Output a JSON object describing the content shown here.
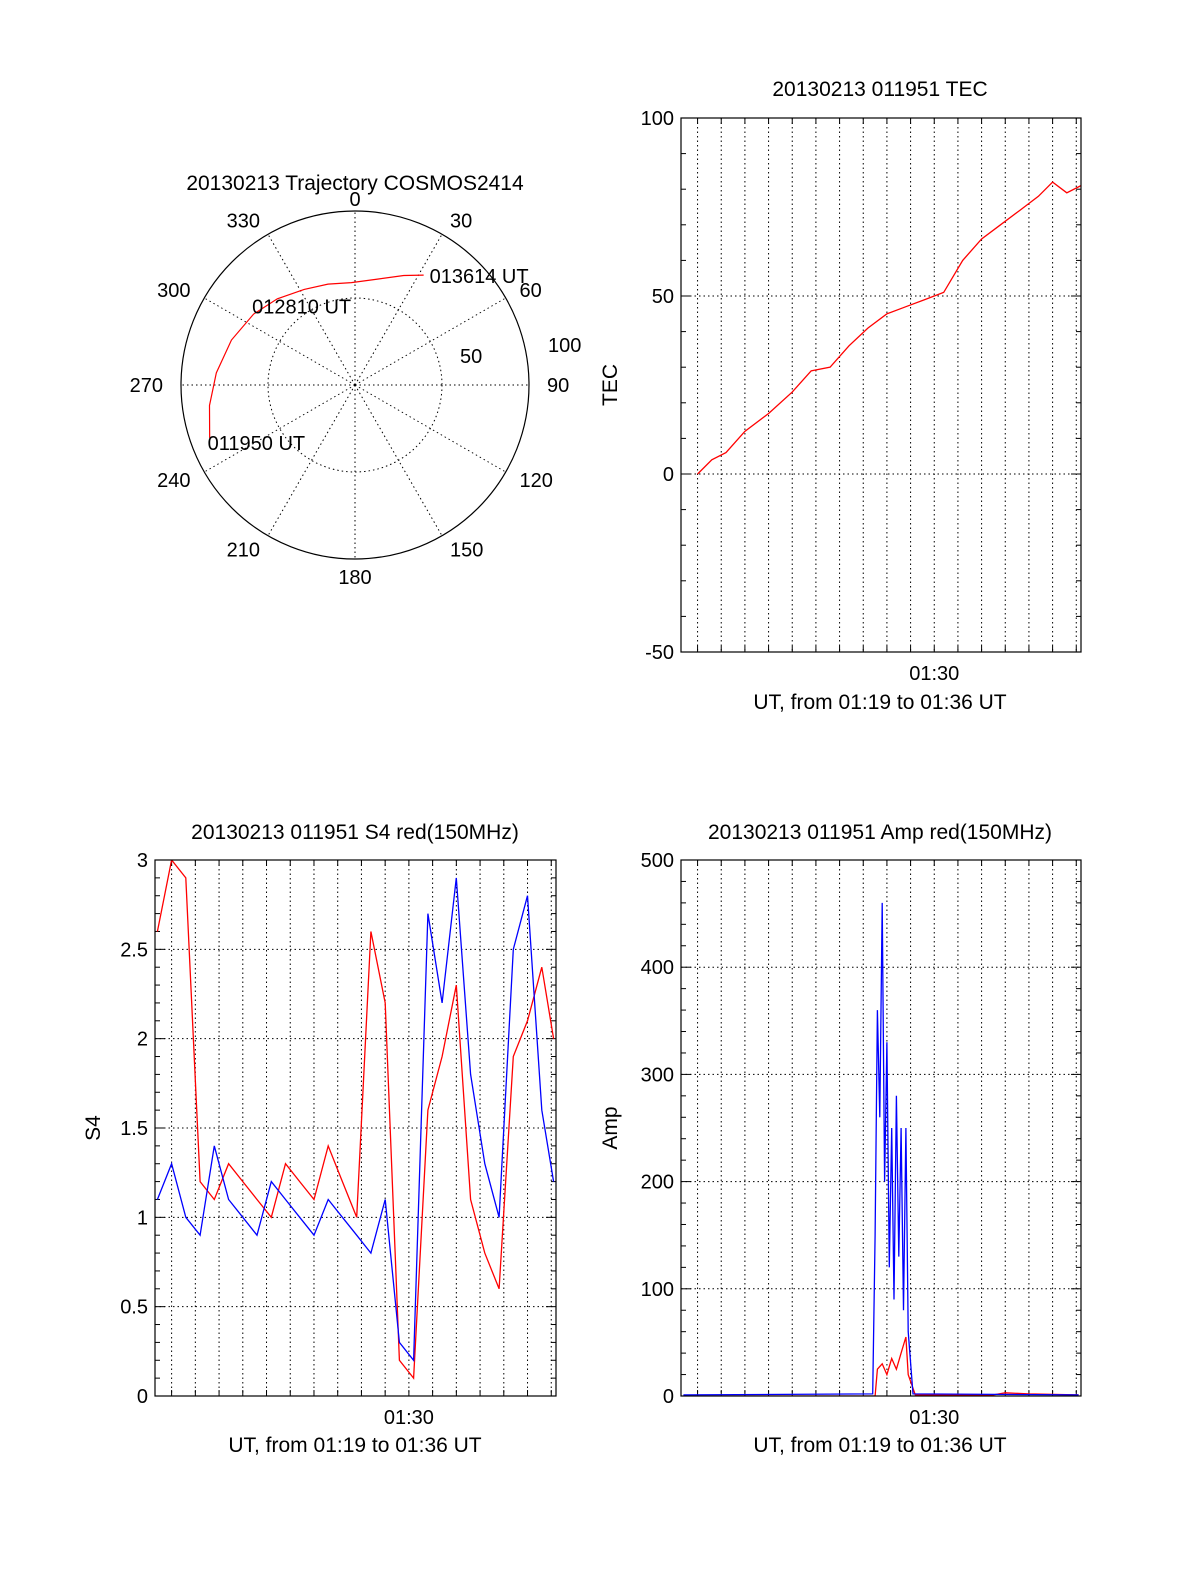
{
  "chart_data": [
    {
      "type": "polar",
      "title": "20130213 Trajectory COSMOS2414",
      "azimuth_labels": [
        "0",
        "30",
        "60",
        "90",
        "120",
        "150",
        "180",
        "210",
        "240",
        "270",
        "300",
        "330"
      ],
      "radial_labels": [
        "50",
        "100"
      ],
      "track": {
        "color": "#ff0000",
        "points": [
          {
            "az": 250,
            "el": 10
          },
          {
            "az": 262,
            "el": 14
          },
          {
            "az": 275,
            "el": 18
          },
          {
            "az": 290,
            "el": 22
          },
          {
            "az": 305,
            "el": 26
          },
          {
            "az": 318,
            "el": 30
          },
          {
            "az": 332,
            "el": 34
          },
          {
            "az": 345,
            "el": 36
          },
          {
            "az": 358,
            "el": 37
          },
          {
            "az": 12,
            "el": 34
          },
          {
            "az": 24,
            "el": 28
          },
          {
            "az": 32,
            "el": 23
          }
        ]
      },
      "annotations": [
        {
          "text": "011950 UT",
          "az": 250,
          "el": 10
        },
        {
          "text": "012810 UT",
          "az": 332,
          "el": 34
        },
        {
          "text": "013614 UT",
          "az": 32,
          "el": 23
        }
      ]
    },
    {
      "type": "line",
      "title": "20130213 011951 TEC",
      "ylabel": "TEC",
      "xlabel": "UT, from 01:19 to 01:36 UT",
      "ylim": [
        -50,
        100
      ],
      "yticks": [
        "-50",
        "0",
        "50",
        "100"
      ],
      "xlim_minutes": [
        19.3,
        36.2
      ],
      "xticks": [
        {
          "label": "01:30",
          "minute": 30
        }
      ],
      "series": [
        {
          "color": "#ff0000",
          "x": [
            20.0,
            20.6,
            21.2,
            22.0,
            23.0,
            24.0,
            24.8,
            25.6,
            26.4,
            27.2,
            28.0,
            28.8,
            29.6,
            30.4,
            31.2,
            32.0,
            32.8,
            33.6,
            34.4,
            35.0,
            35.6,
            36.2
          ],
          "y": [
            0,
            4,
            6,
            12,
            17,
            23,
            29,
            30,
            36,
            41,
            45,
            47,
            49,
            51,
            60,
            66,
            70,
            74,
            78,
            82,
            79,
            81
          ]
        }
      ]
    },
    {
      "type": "line",
      "title": "20130213 011951 S4 red(150MHz)",
      "ylabel": "S4",
      "xlabel": "UT, from 01:19 to 01:36 UT",
      "ylim": [
        0,
        3
      ],
      "yticks": [
        "0",
        "0.5",
        "1",
        "1.5",
        "2",
        "2.5",
        "3"
      ],
      "xlim_minutes": [
        19.3,
        36.2
      ],
      "xticks": [
        {
          "label": "01:30",
          "minute": 30
        }
      ],
      "series": [
        {
          "color": "#ff0000",
          "x": [
            19.4,
            20.0,
            20.6,
            21.2,
            21.8,
            22.4,
            23.0,
            23.6,
            24.2,
            24.8,
            25.4,
            26.0,
            26.6,
            27.2,
            27.8,
            28.4,
            29.0,
            29.6,
            30.2,
            30.8,
            31.4,
            32.0,
            32.6,
            33.2,
            33.8,
            34.4,
            35.0,
            35.6,
            36.1
          ],
          "y": [
            2.6,
            3.0,
            2.9,
            1.2,
            1.1,
            1.3,
            1.2,
            1.1,
            1.0,
            1.3,
            1.2,
            1.1,
            1.4,
            1.2,
            1.0,
            2.6,
            2.2,
            0.2,
            0.1,
            1.6,
            1.9,
            2.3,
            1.1,
            0.8,
            0.6,
            1.9,
            2.1,
            2.4,
            2.0
          ]
        },
        {
          "color": "#0000ff",
          "x": [
            19.4,
            20.0,
            20.6,
            21.2,
            21.8,
            22.4,
            23.0,
            23.6,
            24.2,
            24.8,
            25.4,
            26.0,
            26.6,
            27.2,
            27.8,
            28.4,
            29.0,
            29.6,
            30.2,
            30.8,
            31.4,
            32.0,
            32.6,
            33.2,
            33.8,
            34.4,
            35.0,
            35.6,
            36.1
          ],
          "y": [
            1.1,
            1.3,
            1.0,
            0.9,
            1.4,
            1.1,
            1.0,
            0.9,
            1.2,
            1.1,
            1.0,
            0.9,
            1.1,
            1.0,
            0.9,
            0.8,
            1.1,
            0.3,
            0.2,
            2.7,
            2.2,
            2.9,
            1.8,
            1.3,
            1.0,
            2.5,
            2.8,
            1.6,
            1.2
          ]
        }
      ]
    },
    {
      "type": "line",
      "title": "20130213 011951 Amp red(150MHz)",
      "ylabel": "Amp",
      "xlabel": "UT, from 01:19 to 01:36 UT",
      "ylim": [
        0,
        500
      ],
      "yticks": [
        "0",
        "100",
        "200",
        "300",
        "400",
        "500"
      ],
      "xlim_minutes": [
        19.3,
        36.2
      ],
      "xticks": [
        {
          "label": "01:30",
          "minute": 30
        }
      ],
      "series": [
        {
          "color": "#ff0000",
          "x": [
            19.4,
            27.5,
            27.6,
            27.8,
            28.0,
            28.2,
            28.4,
            28.6,
            28.8,
            28.9,
            29.2,
            32.5,
            33.0,
            34.0,
            36.1
          ],
          "y": [
            0,
            0,
            25,
            30,
            20,
            35,
            25,
            40,
            55,
            20,
            1,
            1,
            3,
            2,
            1
          ]
        },
        {
          "color": "#0000ff",
          "x": [
            19.4,
            27.4,
            27.5,
            27.6,
            27.7,
            27.8,
            27.9,
            28.0,
            28.1,
            28.2,
            28.3,
            28.4,
            28.5,
            28.6,
            28.7,
            28.8,
            28.9,
            29.1,
            36.1
          ],
          "y": [
            1,
            2,
            150,
            360,
            260,
            460,
            200,
            330,
            120,
            250,
            90,
            280,
            130,
            250,
            80,
            250,
            60,
            2,
            1
          ]
        }
      ]
    }
  ]
}
